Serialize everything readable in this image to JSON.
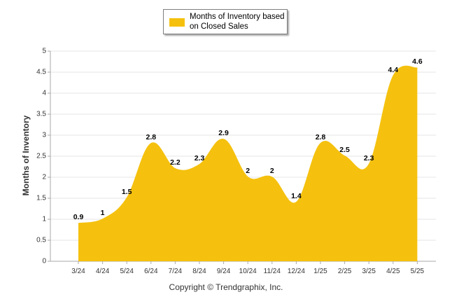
{
  "chart_data": {
    "type": "area",
    "categories": [
      "3/24",
      "4/24",
      "5/24",
      "6/24",
      "7/24",
      "8/24",
      "9/24",
      "10/24",
      "11/24",
      "12/24",
      "1/25",
      "2/25",
      "3/25",
      "4/25",
      "5/25"
    ],
    "series": [
      {
        "name": "Months of Inventory based on Closed Sales",
        "values": [
          0.9,
          1,
          1.5,
          2.8,
          2.2,
          2.3,
          2.9,
          2,
          2,
          1.4,
          2.8,
          2.5,
          2.3,
          4.4,
          4.6
        ],
        "labels": [
          "0.9",
          "1",
          "1.5",
          "2.8",
          "2.2",
          "2.3",
          "2.9",
          "2",
          "2",
          "1.4",
          "2.8",
          "2.5",
          "2.3",
          "4.4",
          "4.6"
        ]
      }
    ],
    "ylabel": "Months of Inventory",
    "ylim": [
      0,
      5
    ],
    "yticks": [
      "0",
      "0.5",
      "1",
      "1.5",
      "2",
      "2.5",
      "3",
      "3.5",
      "4",
      "4.5",
      "5"
    ],
    "grid": true,
    "legend_position": "top",
    "series_color": "#f5c10e",
    "copyright": "Copyright © Trendgraphix, Inc."
  },
  "legend": {
    "label": "Months of Inventory based on Closed Sales"
  }
}
